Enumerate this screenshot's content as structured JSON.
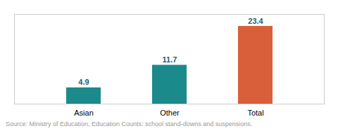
{
  "chart_data": {
    "type": "bar",
    "categories": [
      "Asian",
      "Other",
      "Total"
    ],
    "values": [
      4.9,
      11.7,
      23.4
    ],
    "colors": [
      "#1a8a8a",
      "#1a8a8a",
      "#d95f3b"
    ],
    "ylim": [
      0,
      27
    ],
    "data_labels": true,
    "tick_labels": "x",
    "annotations": [
      "Source: Ministry of Education, Education Counts: school stand-downs and suspensions."
    ]
  }
}
